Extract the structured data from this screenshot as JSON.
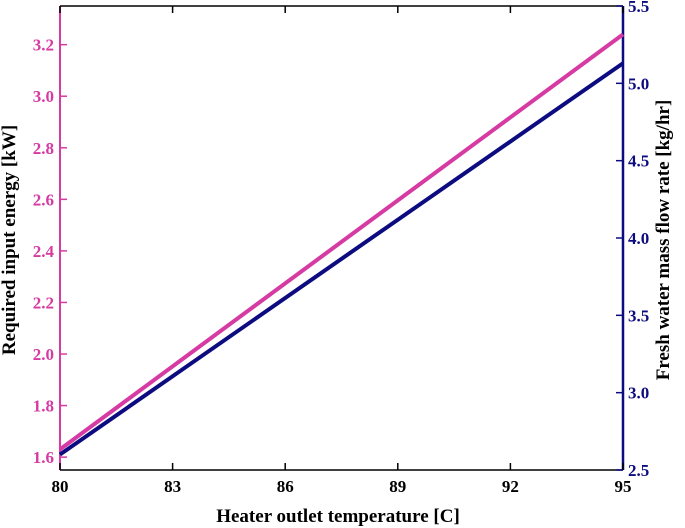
{
  "chart_data": {
    "type": "line",
    "title": "",
    "xlabel": "Heater outlet temperature [C]",
    "ylabel_left": "Required input energy [kW]",
    "ylabel_right": "Fresh water mass flow rate [kg/hr]",
    "xlim": [
      80,
      95
    ],
    "ylim_left": [
      1.55,
      3.35
    ],
    "ylim_right": [
      2.5,
      5.5
    ],
    "xticks": [
      "80",
      "83",
      "86",
      "89",
      "92",
      "95"
    ],
    "yticks_left": [
      "1.6",
      "1.8",
      "2.0",
      "2.2",
      "2.4",
      "2.6",
      "2.8",
      "3.0",
      "3.2"
    ],
    "yticks_right": [
      "2.5",
      "3.0",
      "3.5",
      "4.0",
      "4.5",
      "5.0",
      "5.5"
    ],
    "grid": false,
    "colors": {
      "left": "#d63aa3",
      "right": "#0c0c80"
    },
    "series": [
      {
        "axis": "left",
        "x": [
          80,
          95
        ],
        "y": [
          1.63,
          3.24
        ]
      },
      {
        "axis": "right",
        "x": [
          80,
          95
        ],
        "y": [
          2.6,
          5.13
        ]
      }
    ]
  }
}
